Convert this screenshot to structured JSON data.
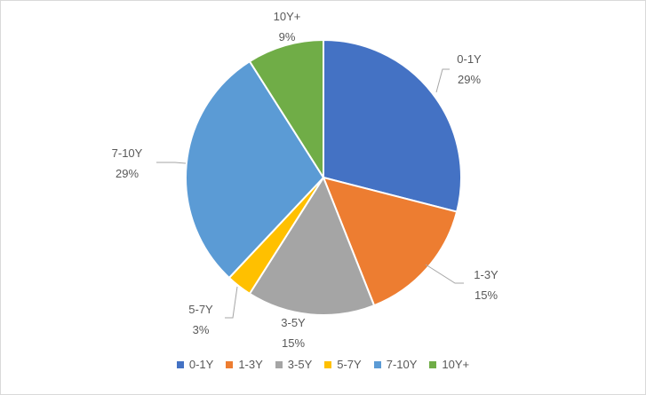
{
  "chart_data": {
    "type": "pie",
    "title": "",
    "slices": [
      {
        "label": "0-1Y",
        "value": 29,
        "value_label": "29%",
        "color": "#4472C4"
      },
      {
        "label": "1-3Y",
        "value": 15,
        "value_label": "15%",
        "color": "#ED7D31"
      },
      {
        "label": "3-5Y",
        "value": 15,
        "value_label": "15%",
        "color": "#A5A5A5"
      },
      {
        "label": "5-7Y",
        "value": 3,
        "value_label": "3%",
        "color": "#FFC000"
      },
      {
        "label": "7-10Y",
        "value": 29,
        "value_label": "29%",
        "color": "#5B9BD5"
      },
      {
        "label": "10Y+",
        "value": 9,
        "value_label": "9%",
        "color": "#70AD47"
      }
    ],
    "legend": {
      "position": "bottom"
    }
  }
}
